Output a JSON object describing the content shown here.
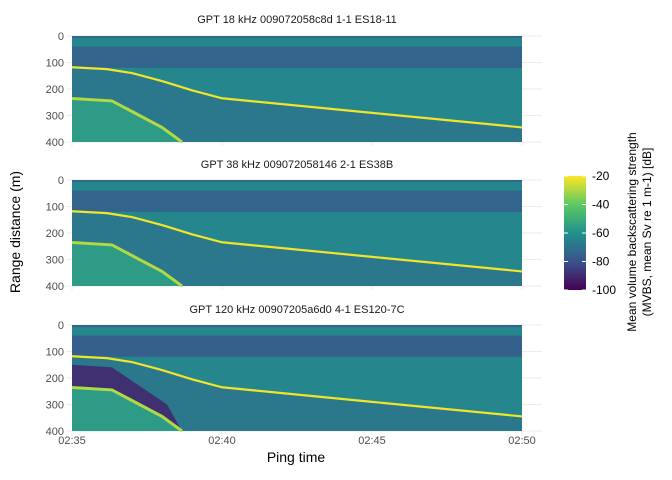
{
  "chart_data": {
    "type": "heatmap",
    "panels": [
      {
        "title": "GPT  18 kHz 009072058c8d 1-1 ES18-11"
      },
      {
        "title": "GPT  38 kHz 009072058146 2-1 ES38B"
      },
      {
        "title": "GPT 120 kHz 00907205a6d0 4-1 ES120-7C"
      }
    ],
    "xlabel": "Ping time",
    "ylabel": "Range distance (m)",
    "x_ticks": [
      "02:35",
      "02:40",
      "02:45",
      "02:50"
    ],
    "x_range": [
      "02:35",
      "02:50"
    ],
    "y_ticks": [
      0,
      100,
      200,
      300,
      400
    ],
    "ylim": [
      400,
      0
    ],
    "bottom_depth_m": [
      {
        "t": "02:35",
        "range": 118
      },
      {
        "t": "02:36:10",
        "range": 125
      },
      {
        "t": "02:37",
        "range": 140
      },
      {
        "t": "02:38",
        "range": 170
      },
      {
        "t": "02:39",
        "range": 205
      },
      {
        "t": "02:40",
        "range": 235
      },
      {
        "t": "02:45",
        "range": 290
      },
      {
        "t": "02:50",
        "range": 345
      }
    ],
    "second_echo_m": [
      {
        "t": "02:35",
        "range": 236
      },
      {
        "t": "02:36:20",
        "range": 245
      },
      {
        "t": "02:38",
        "range": 345
      },
      {
        "t": "02:38:40",
        "range": 400
      }
    ],
    "colorbar": {
      "title": "Mean volume backscattering strength",
      "subtitle": "(MVBS, mean Sv re 1 m-1) [dB]",
      "min": -100,
      "max": -20,
      "ticks": [
        -20,
        -40,
        -60,
        -80,
        -100
      ],
      "colormap": "viridis",
      "colors": [
        "#440154",
        "#3b528b",
        "#21908d",
        "#5dc963",
        "#fde725"
      ]
    }
  }
}
